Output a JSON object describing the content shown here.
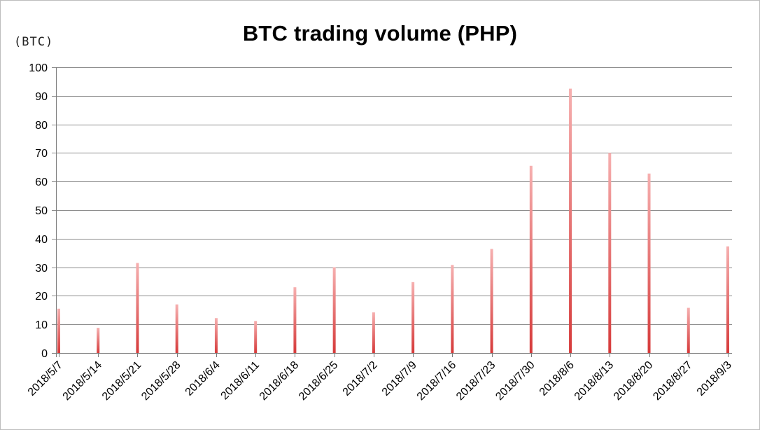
{
  "chart_data": {
    "type": "bar",
    "title": "BTC trading volume (PHP)",
    "ylabel": "(BTC)",
    "xlabel": "",
    "ylim": [
      0,
      100
    ],
    "yticks": [
      0,
      10,
      20,
      30,
      40,
      50,
      60,
      70,
      80,
      90,
      100
    ],
    "grid": true,
    "categories": [
      "2018/5/7",
      "2018/5/14",
      "2018/5/21",
      "2018/5/28",
      "2018/6/4",
      "2018/6/11",
      "2018/6/18",
      "2018/6/25",
      "2018/7/2",
      "2018/7/9",
      "2018/7/16",
      "2018/7/23",
      "2018/7/30",
      "2018/8/6",
      "2018/8/13",
      "2018/8/20",
      "2018/8/27",
      "2018/9/3"
    ],
    "series": [
      {
        "name": "BTC trading volume",
        "color": "#e04848",
        "values": [
          15.5,
          8.8,
          31.5,
          17,
          12.2,
          11.2,
          23,
          30,
          14.2,
          24.8,
          30.8,
          36.4,
          65.5,
          92.5,
          70,
          62.8,
          15.8,
          37.3
        ]
      }
    ]
  }
}
